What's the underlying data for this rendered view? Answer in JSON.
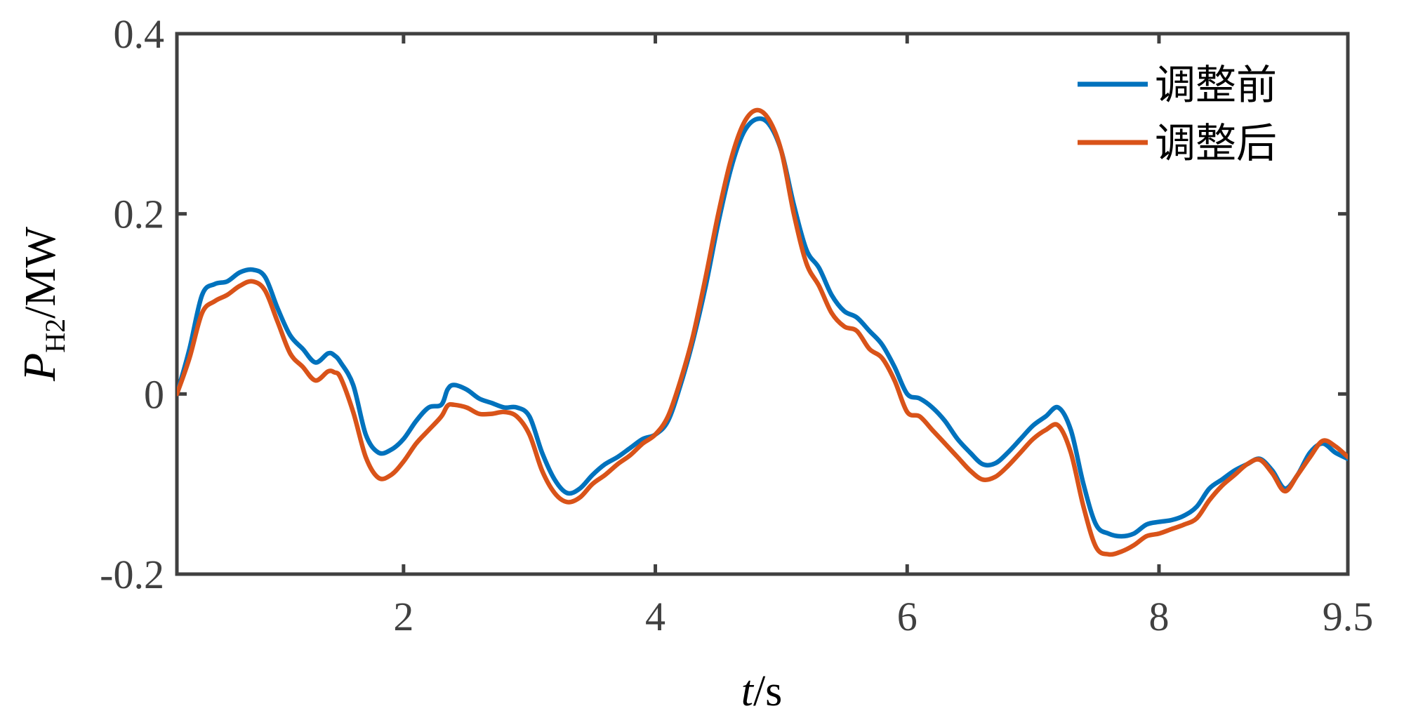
{
  "chart_data": {
    "type": "line",
    "title": "",
    "xlabel_italic": "t",
    "xlabel_unit": "/s",
    "ylabel_italic": "P",
    "ylabel_sub": "H2",
    "ylabel_unit": "/MW",
    "xlim": [
      0.2,
      9.5
    ],
    "ylim": [
      -0.2,
      0.4
    ],
    "xticks": [
      2,
      4,
      6,
      8,
      9.5
    ],
    "xtick_labels": [
      "2",
      "4",
      "6",
      "8",
      "9.5"
    ],
    "yticks": [
      -0.2,
      0,
      0.2,
      0.4
    ],
    "ytick_labels": [
      "-0.2",
      "0",
      "0.2",
      "0.4"
    ],
    "grid": false,
    "legend_position": "top-right",
    "colors": {
      "before": "#0072BD",
      "after": "#D95319",
      "axis": "#404040"
    },
    "series": [
      {
        "name": "调整前",
        "x": [
          0.2,
          0.3,
          0.4,
          0.5,
          0.6,
          0.7,
          0.8,
          0.9,
          1.0,
          1.1,
          1.2,
          1.3,
          1.4,
          1.45,
          1.5,
          1.6,
          1.7,
          1.8,
          1.9,
          2.0,
          2.1,
          2.2,
          2.3,
          2.35,
          2.4,
          2.5,
          2.6,
          2.7,
          2.8,
          2.9,
          3.0,
          3.1,
          3.2,
          3.3,
          3.4,
          3.5,
          3.6,
          3.7,
          3.8,
          3.9,
          4.0,
          4.1,
          4.2,
          4.3,
          4.4,
          4.5,
          4.6,
          4.7,
          4.8,
          4.9,
          5.0,
          5.1,
          5.2,
          5.3,
          5.4,
          5.5,
          5.6,
          5.7,
          5.8,
          5.9,
          6.0,
          6.1,
          6.2,
          6.3,
          6.4,
          6.5,
          6.6,
          6.7,
          6.8,
          6.9,
          7.0,
          7.1,
          7.2,
          7.3,
          7.4,
          7.5,
          7.6,
          7.7,
          7.8,
          7.9,
          8.0,
          8.1,
          8.2,
          8.3,
          8.4,
          8.5,
          8.6,
          8.7,
          8.8,
          8.9,
          9.0,
          9.1,
          9.2,
          9.3,
          9.4,
          9.5
        ],
        "values": [
          0.0,
          0.05,
          0.11,
          0.122,
          0.125,
          0.135,
          0.138,
          0.13,
          0.095,
          0.065,
          0.05,
          0.035,
          0.045,
          0.043,
          0.035,
          0.01,
          -0.045,
          -0.065,
          -0.062,
          -0.05,
          -0.03,
          -0.015,
          -0.012,
          0.005,
          0.01,
          0.005,
          -0.005,
          -0.01,
          -0.015,
          -0.015,
          -0.025,
          -0.065,
          -0.095,
          -0.11,
          -0.105,
          -0.09,
          -0.078,
          -0.07,
          -0.06,
          -0.05,
          -0.045,
          -0.03,
          0.01,
          0.06,
          0.12,
          0.19,
          0.25,
          0.29,
          0.305,
          0.3,
          0.27,
          0.21,
          0.16,
          0.14,
          0.11,
          0.092,
          0.085,
          0.07,
          0.055,
          0.03,
          0.0,
          -0.005,
          -0.015,
          -0.03,
          -0.05,
          -0.065,
          -0.078,
          -0.077,
          -0.065,
          -0.05,
          -0.035,
          -0.025,
          -0.015,
          -0.04,
          -0.1,
          -0.145,
          -0.155,
          -0.158,
          -0.155,
          -0.145,
          -0.142,
          -0.14,
          -0.135,
          -0.125,
          -0.105,
          -0.095,
          -0.085,
          -0.078,
          -0.072,
          -0.085,
          -0.105,
          -0.09,
          -0.065,
          -0.055,
          -0.065,
          -0.072
        ]
      },
      {
        "name": "调整后",
        "x": [
          0.2,
          0.3,
          0.4,
          0.5,
          0.6,
          0.7,
          0.8,
          0.9,
          1.0,
          1.1,
          1.2,
          1.3,
          1.4,
          1.45,
          1.5,
          1.6,
          1.7,
          1.8,
          1.9,
          2.0,
          2.1,
          2.2,
          2.3,
          2.35,
          2.4,
          2.5,
          2.6,
          2.7,
          2.8,
          2.9,
          3.0,
          3.1,
          3.2,
          3.3,
          3.4,
          3.5,
          3.6,
          3.7,
          3.8,
          3.9,
          4.0,
          4.1,
          4.2,
          4.3,
          4.4,
          4.5,
          4.6,
          4.7,
          4.8,
          4.9,
          5.0,
          5.1,
          5.2,
          5.3,
          5.4,
          5.5,
          5.6,
          5.7,
          5.8,
          5.9,
          6.0,
          6.1,
          6.2,
          6.3,
          6.4,
          6.5,
          6.6,
          6.7,
          6.8,
          6.9,
          7.0,
          7.1,
          7.2,
          7.3,
          7.4,
          7.5,
          7.6,
          7.7,
          7.8,
          7.9,
          8.0,
          8.1,
          8.2,
          8.3,
          8.4,
          8.5,
          8.6,
          8.7,
          8.8,
          8.9,
          9.0,
          9.1,
          9.2,
          9.3,
          9.4,
          9.5
        ],
        "values": [
          0.0,
          0.04,
          0.09,
          0.103,
          0.11,
          0.12,
          0.125,
          0.115,
          0.08,
          0.045,
          0.03,
          0.015,
          0.025,
          0.024,
          0.018,
          -0.02,
          -0.07,
          -0.093,
          -0.09,
          -0.075,
          -0.055,
          -0.04,
          -0.025,
          -0.013,
          -0.012,
          -0.015,
          -0.022,
          -0.022,
          -0.02,
          -0.025,
          -0.045,
          -0.085,
          -0.11,
          -0.12,
          -0.115,
          -0.1,
          -0.09,
          -0.078,
          -0.068,
          -0.055,
          -0.045,
          -0.025,
          0.015,
          0.065,
          0.13,
          0.2,
          0.26,
          0.3,
          0.315,
          0.305,
          0.27,
          0.2,
          0.145,
          0.12,
          0.09,
          0.075,
          0.07,
          0.05,
          0.04,
          0.015,
          -0.02,
          -0.025,
          -0.04,
          -0.055,
          -0.07,
          -0.085,
          -0.095,
          -0.092,
          -0.08,
          -0.065,
          -0.05,
          -0.04,
          -0.035,
          -0.065,
          -0.125,
          -0.17,
          -0.178,
          -0.175,
          -0.168,
          -0.158,
          -0.155,
          -0.15,
          -0.145,
          -0.138,
          -0.118,
          -0.102,
          -0.09,
          -0.078,
          -0.073,
          -0.088,
          -0.108,
          -0.09,
          -0.07,
          -0.052,
          -0.058,
          -0.07
        ]
      }
    ]
  }
}
